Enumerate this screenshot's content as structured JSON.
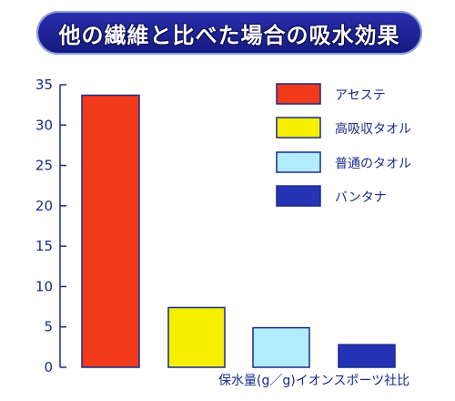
{
  "chart_data": {
    "type": "bar",
    "title": "他の繊維と比べた場合の吸水効果",
    "categories": [
      "アセステ",
      "高吸収タオル",
      "普通のタオル",
      "バンタナ"
    ],
    "values": [
      33.7,
      7.4,
      4.9,
      2.8
    ],
    "colors": [
      "#f03a1a",
      "#f5f000",
      "#b2ecff",
      "#2434b4"
    ],
    "ylim": [
      0,
      35
    ],
    "yticks": [
      0,
      5,
      10,
      15,
      20,
      25,
      30,
      35
    ],
    "legend": [
      "アセステ",
      "高吸収タオル",
      "普通のタオル",
      "バンタナ"
    ],
    "legend_position": "top-right",
    "grid": false,
    "source_note": "保水量(g／g)イオンスポーツ社比"
  },
  "colors": {
    "axis": "#1a2a8a",
    "bar_outline": "#1a2a8a",
    "title_banner": "#1a1f96"
  }
}
